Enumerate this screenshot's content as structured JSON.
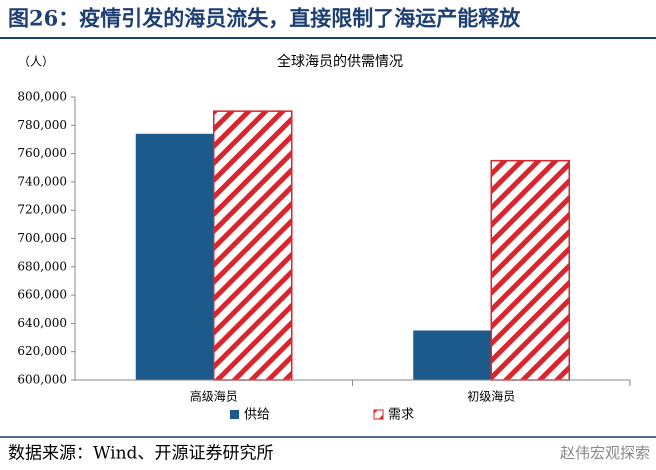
{
  "header": {
    "title": "图26：疫情引发的海员流失，直接限制了海运产能释放"
  },
  "chart_data": {
    "type": "bar",
    "title": "全球海员的供需情况",
    "y_label": "（人）",
    "categories": [
      "高级海员",
      "初级海员"
    ],
    "series": [
      {
        "name": "供给",
        "color": "#1b5a8a",
        "values": [
          774000,
          635000
        ]
      },
      {
        "name": "需求",
        "color": "#d9252e",
        "values": [
          790000,
          755000
        ]
      }
    ],
    "ylim": [
      600000,
      800000
    ],
    "yticks": [
      {
        "value": 600000,
        "label": "600,000"
      },
      {
        "value": 620000,
        "label": "620,000"
      },
      {
        "value": 640000,
        "label": "640,000"
      },
      {
        "value": 660000,
        "label": "660,000"
      },
      {
        "value": 680000,
        "label": "680,000"
      },
      {
        "value": 700000,
        "label": "700,000"
      },
      {
        "value": 720000,
        "label": "720,000"
      },
      {
        "value": 740000,
        "label": "740,000"
      },
      {
        "value": 760000,
        "label": "760,000"
      },
      {
        "value": 780000,
        "label": "780,000"
      },
      {
        "value": 800000,
        "label": "800,000"
      }
    ],
    "legend": "bottom"
  },
  "footer": {
    "source": "数据来源：Wind、开源证券研究所",
    "watermark": "赵伟宏观探索"
  }
}
